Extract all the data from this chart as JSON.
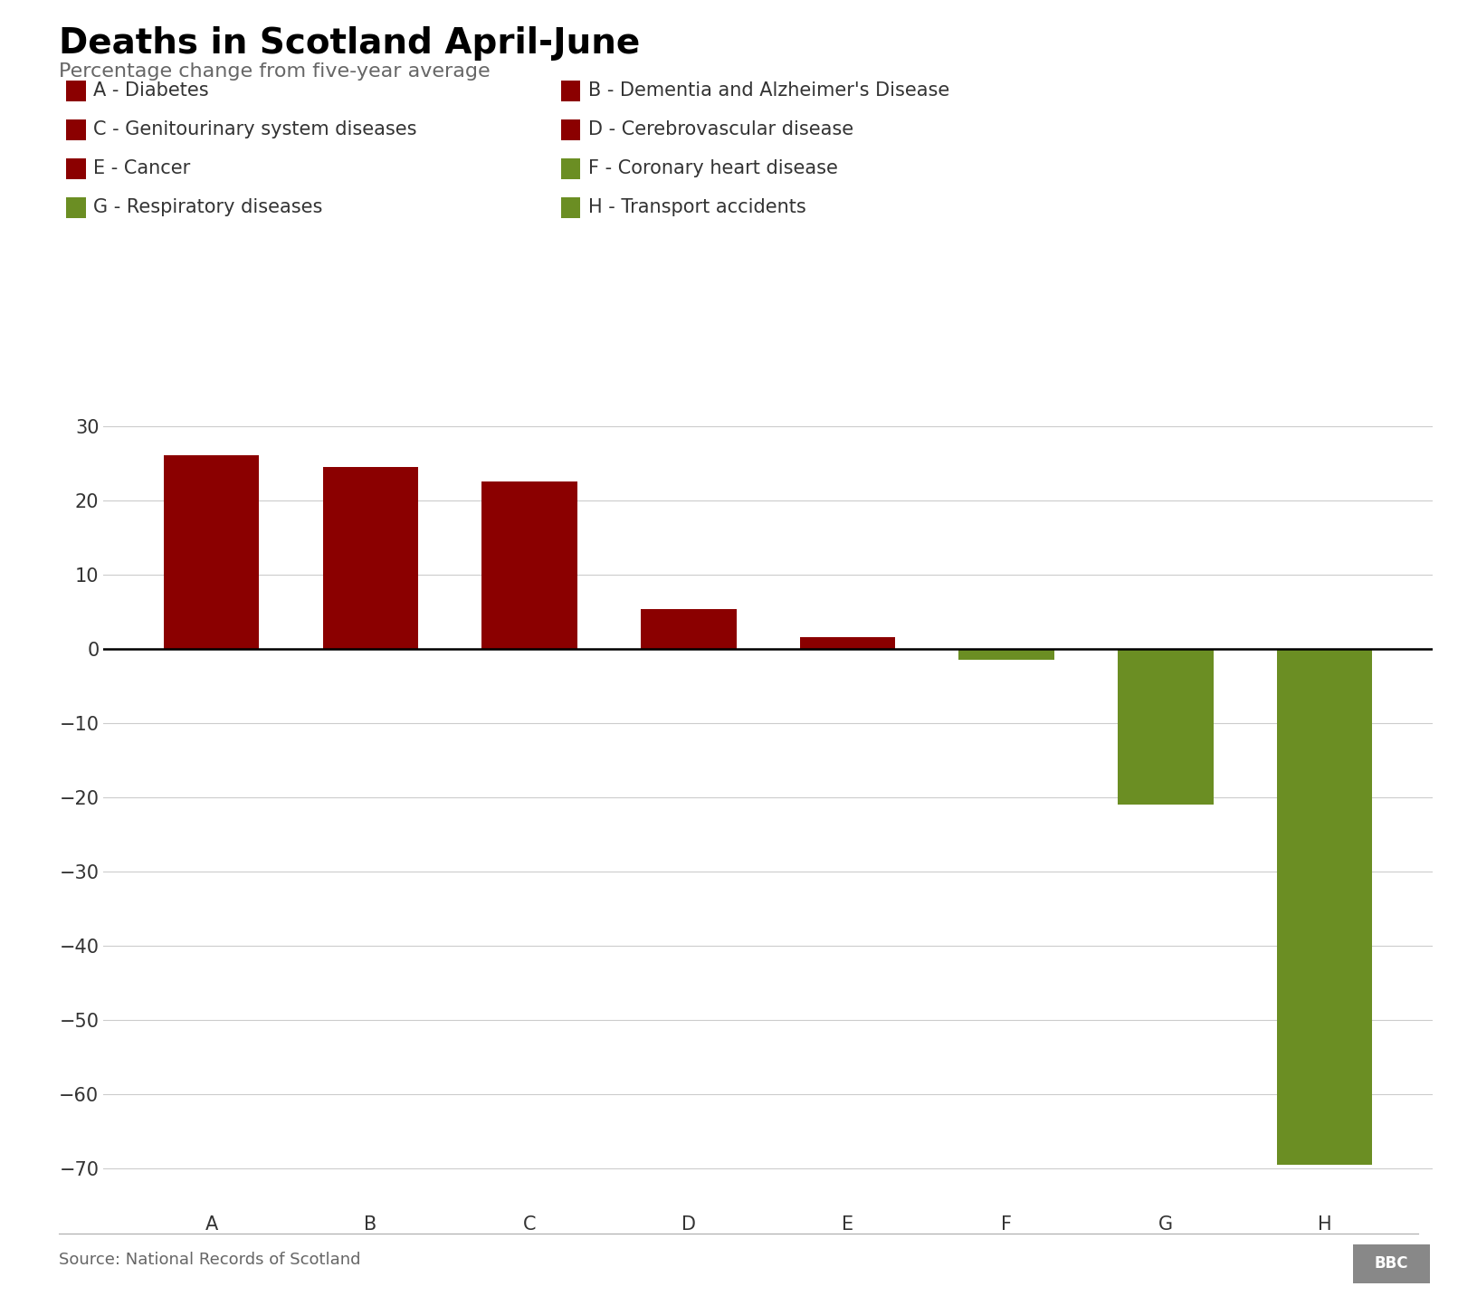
{
  "title": "Deaths in Scotland April-June",
  "subtitle": "Percentage change from five-year average",
  "source": "Source: National Records of Scotland",
  "bbc_logo": "BBC",
  "categories": [
    "A",
    "B",
    "C",
    "D",
    "E",
    "F",
    "G",
    "H"
  ],
  "values": [
    26.0,
    24.5,
    22.5,
    5.3,
    1.5,
    -1.5,
    -21.0,
    -69.5
  ],
  "bar_colors": [
    "#8B0000",
    "#8B0000",
    "#8B0000",
    "#8B0000",
    "#8B0000",
    "#6B8E23",
    "#6B8E23",
    "#6B8E23"
  ],
  "legend_items_left": [
    {
      "label": "A - Diabetes",
      "color": "#8B0000"
    },
    {
      "label": "C - Genitourinary system diseases",
      "color": "#8B0000"
    },
    {
      "label": "E - Cancer",
      "color": "#8B0000"
    },
    {
      "label": "G - Respiratory diseases",
      "color": "#6B8E23"
    }
  ],
  "legend_items_right": [
    {
      "label": "B - Dementia and Alzheimer's Disease",
      "color": "#8B0000"
    },
    {
      "label": "D - Cerebrovascular disease",
      "color": "#8B0000"
    },
    {
      "label": "F - Coronary heart disease",
      "color": "#6B8E23"
    },
    {
      "label": "H - Transport accidents",
      "color": "#6B8E23"
    }
  ],
  "ylim": [
    -75,
    35
  ],
  "yticks": [
    -70,
    -60,
    -50,
    -40,
    -30,
    -20,
    -10,
    0,
    10,
    20,
    30
  ],
  "background_color": "#ffffff",
  "grid_color": "#cccccc",
  "title_fontsize": 28,
  "subtitle_fontsize": 16,
  "tick_fontsize": 15,
  "legend_fontsize": 15,
  "source_fontsize": 13,
  "title_color": "#000000",
  "subtitle_color": "#666666",
  "source_color": "#666666",
  "tick_label_color": "#333333",
  "bar_width": 0.6
}
